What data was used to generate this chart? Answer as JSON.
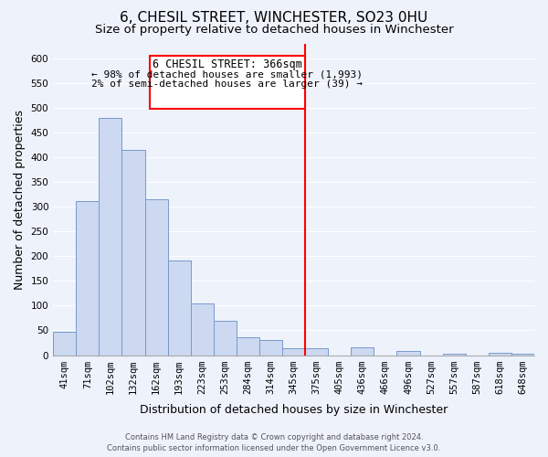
{
  "title": "6, CHESIL STREET, WINCHESTER, SO23 0HU",
  "subtitle": "Size of property relative to detached houses in Winchester",
  "xlabel": "Distribution of detached houses by size in Winchester",
  "ylabel": "Number of detached properties",
  "bar_color": "#ccd9f0",
  "bar_edge_color": "#7799cc",
  "bins": [
    "41sqm",
    "71sqm",
    "102sqm",
    "132sqm",
    "162sqm",
    "193sqm",
    "223sqm",
    "253sqm",
    "284sqm",
    "314sqm",
    "345sqm",
    "375sqm",
    "405sqm",
    "436sqm",
    "466sqm",
    "496sqm",
    "527sqm",
    "557sqm",
    "587sqm",
    "618sqm",
    "648sqm"
  ],
  "values": [
    47,
    312,
    480,
    415,
    315,
    192,
    105,
    69,
    36,
    31,
    13,
    13,
    0,
    15,
    0,
    9,
    0,
    3,
    0,
    5,
    3
  ],
  "ylim": [
    0,
    630
  ],
  "yticks": [
    0,
    50,
    100,
    150,
    200,
    250,
    300,
    350,
    400,
    450,
    500,
    550,
    600
  ],
  "vline_label": "6 CHESIL STREET: 366sqm",
  "annotation_line1": "← 98% of detached houses are smaller (1,993)",
  "annotation_line2": "2% of semi-detached houses are larger (39) →",
  "footer1": "Contains HM Land Registry data © Crown copyright and database right 2024.",
  "footer2": "Contains public sector information licensed under the Open Government Licence v3.0.",
  "background_color": "#eef2fb",
  "grid_color": "#ffffff",
  "title_fontsize": 11,
  "subtitle_fontsize": 9.5,
  "label_fontsize": 9,
  "tick_fontsize": 7.5,
  "footer_fontsize": 6,
  "vline_bin_index": 11
}
